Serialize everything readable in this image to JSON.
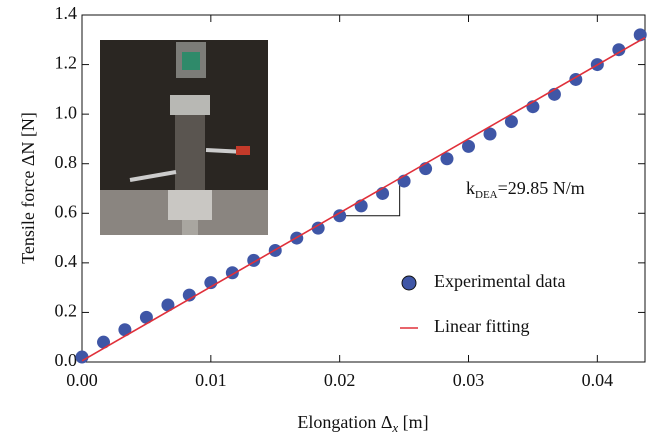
{
  "chart_data": {
    "type": "scatter",
    "x_label": {
      "text": "Elongation Δ",
      "subscript": "x",
      "unit": " [m]"
    },
    "y_label": "Tensile force ΔN [N]",
    "annotation": {
      "symbol": "k",
      "subscript": "DEA",
      "text": "=29.85 N/m"
    },
    "xlim": [
      0,
      0.0437
    ],
    "ylim": [
      0,
      1.4
    ],
    "xticks": [
      {
        "value": 0,
        "label": "0.00"
      },
      {
        "value": 0.01,
        "label": "0.01"
      },
      {
        "value": 0.02,
        "label": "0.02"
      },
      {
        "value": 0.03,
        "label": "0.03"
      },
      {
        "value": 0.04,
        "label": "0.04"
      }
    ],
    "yticks": [
      {
        "value": 0,
        "label": "0.0"
      },
      {
        "value": 0.2,
        "label": "0.2"
      },
      {
        "value": 0.4,
        "label": "0.4"
      },
      {
        "value": 0.6,
        "label": "0.6"
      },
      {
        "value": 0.8,
        "label": "0.8"
      },
      {
        "value": 1.0,
        "label": "1.0"
      },
      {
        "value": 1.2,
        "label": "1.2"
      },
      {
        "value": 1.4,
        "label": "1.4"
      }
    ],
    "series": [
      {
        "name": "Experimental data",
        "type": "scatter",
        "color": "#3f56a6",
        "x": [
          0,
          0.00167,
          0.00333,
          0.005,
          0.00667,
          0.00833,
          0.01,
          0.01167,
          0.01333,
          0.015,
          0.01667,
          0.01833,
          0.02,
          0.02167,
          0.02333,
          0.025,
          0.02667,
          0.02833,
          0.03,
          0.03167,
          0.03333,
          0.035,
          0.03667,
          0.03833,
          0.04,
          0.04167,
          0.04333
        ],
        "values": [
          0.02,
          0.08,
          0.13,
          0.18,
          0.23,
          0.27,
          0.32,
          0.36,
          0.41,
          0.45,
          0.5,
          0.54,
          0.59,
          0.63,
          0.68,
          0.73,
          0.78,
          0.82,
          0.87,
          0.92,
          0.97,
          1.03,
          1.08,
          1.14,
          1.2,
          1.26,
          1.32
        ]
      },
      {
        "name": "Linear fitting",
        "type": "line",
        "color": "#e0303a",
        "x": [
          0,
          0.0437
        ],
        "values": [
          0.005,
          1.309
        ]
      }
    ],
    "legend": "lower right"
  }
}
